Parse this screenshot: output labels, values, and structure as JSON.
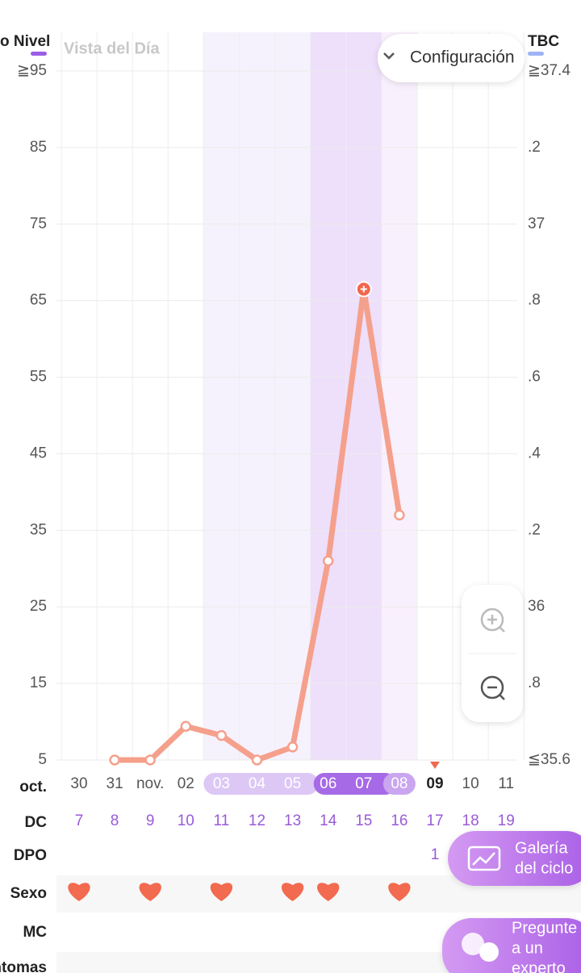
{
  "header": {
    "left_title": "o Nivel",
    "view_label": "Vista del Día",
    "settings": "Configuración",
    "right_title": "TBC"
  },
  "chart_data": {
    "type": "line",
    "categories": [
      "30",
      "31",
      "nov.",
      "02",
      "03",
      "04",
      "05",
      "06",
      "07",
      "08",
      "09",
      "10",
      "11"
    ],
    "values": [
      null,
      5,
      5,
      9.4,
      8.2,
      5,
      6.7,
      31,
      66.5,
      37,
      null,
      null,
      null
    ],
    "color": "#f5a08c",
    "ylim": [
      5,
      95
    ],
    "yticks": [
      {
        "value": 95,
        "label": "≧95"
      },
      85,
      75,
      65,
      55,
      45,
      35,
      25,
      15,
      5
    ],
    "y2lim": [
      35.6,
      37.4
    ],
    "y2ticks": [
      {
        "value": 37.4,
        "label": "≧37.4"
      },
      {
        "value": 37.2,
        "label": ".2"
      },
      37,
      {
        "value": 36.8,
        "label": ".8"
      },
      {
        "value": 36.6,
        "label": ".6"
      },
      {
        "value": 36.4,
        "label": ".4"
      },
      {
        "value": 36.2,
        "label": ".2"
      },
      36,
      {
        "value": 35.8,
        "label": ".8"
      },
      {
        "value": 35.6,
        "label": "≦35.6"
      }
    ],
    "grid": true
  },
  "rows": {
    "month_label": "oct.",
    "dc": {
      "label": "DC",
      "values": [
        "7",
        "8",
        "9",
        "10",
        "11",
        "12",
        "13",
        "14",
        "15",
        "16",
        "17",
        "18",
        "19"
      ]
    },
    "dpo": {
      "label": "DPO",
      "values": [
        null,
        null,
        null,
        null,
        null,
        null,
        null,
        null,
        null,
        null,
        "1",
        null,
        null
      ]
    },
    "sex": {
      "label": "Sexo",
      "marked": [
        true,
        false,
        true,
        false,
        true,
        false,
        true,
        true,
        false,
        true,
        false,
        false,
        false
      ]
    },
    "mc": {
      "label": "MC"
    },
    "symptoms": {
      "label": "ntomas"
    }
  },
  "buttons": {
    "gallery": [
      "Galería",
      "del ciclo"
    ],
    "ask": [
      "Pregunte",
      "a un",
      "experto"
    ]
  }
}
